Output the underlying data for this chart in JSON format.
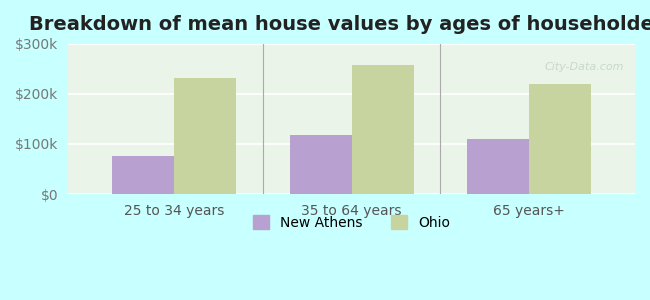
{
  "title": "Breakdown of mean house values by ages of householders",
  "categories": [
    "25 to 34 years",
    "35 to 64 years",
    "65 years+"
  ],
  "new_athens_values": [
    75000,
    117000,
    110000
  ],
  "ohio_values": [
    232000,
    258000,
    220000
  ],
  "new_athens_color": "#b8a0d0",
  "ohio_color": "#c8d4a0",
  "background_color": "#c8ffff",
  "plot_bg_start": "#e8f8e8",
  "plot_bg_end": "#f8fff8",
  "ylim": [
    0,
    300000
  ],
  "yticks": [
    0,
    100000,
    200000,
    300000
  ],
  "ytick_labels": [
    "$0",
    "$100k",
    "$200k",
    "$300k"
  ],
  "legend_labels": [
    "New Athens",
    "Ohio"
  ],
  "bar_width": 0.35,
  "title_fontsize": 14,
  "tick_fontsize": 10,
  "legend_fontsize": 10
}
